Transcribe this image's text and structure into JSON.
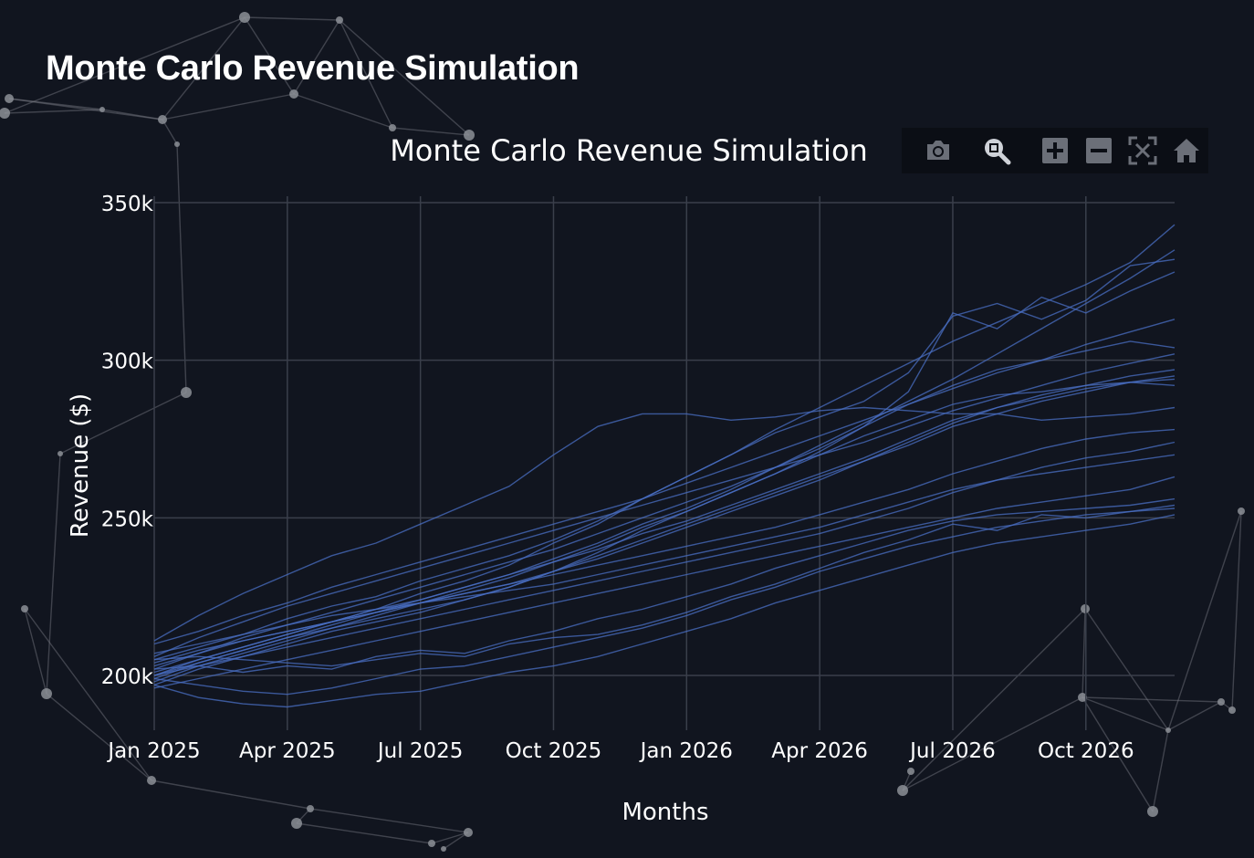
{
  "page": {
    "title": "Monte Carlo Revenue Simulation"
  },
  "modebar": {
    "buttons": [
      {
        "name": "camera-icon",
        "tooltip": "Download plot as a png"
      },
      {
        "name": "zoom-icon",
        "tooltip": "Zoom"
      },
      {
        "name": "zoom-in-icon",
        "tooltip": "Zoom in"
      },
      {
        "name": "zoom-out-icon",
        "tooltip": "Zoom out"
      },
      {
        "name": "autoscale-icon",
        "tooltip": "Autoscale"
      },
      {
        "name": "home-icon",
        "tooltip": "Reset axes"
      }
    ]
  },
  "colors": {
    "background": "#11151f",
    "line": "#4a6fc4",
    "grid": "#3a3f4b",
    "text": "#ffffff"
  },
  "chart_data": {
    "type": "line",
    "title": "Monte Carlo Revenue Simulation",
    "xlabel": "Months",
    "ylabel": "Revenue ($)",
    "x_start": "2025-01",
    "x_ticks": [
      "Jan 2025",
      "Apr 2025",
      "Jul 2025",
      "Oct 2025",
      "Jan 2026",
      "Apr 2026",
      "Jul 2026",
      "Oct 2026"
    ],
    "y_ticks": [
      "200k",
      "250k",
      "300k",
      "350k"
    ],
    "y_tick_values": [
      200000,
      250000,
      300000,
      350000
    ],
    "ylim": [
      190000,
      355000
    ],
    "grid": true,
    "legend": "none",
    "x": [
      "2025-01",
      "2025-02",
      "2025-03",
      "2025-04",
      "2025-05",
      "2025-06",
      "2025-07",
      "2025-08",
      "2025-09",
      "2025-10",
      "2025-11",
      "2025-12",
      "2026-01",
      "2026-02",
      "2026-03",
      "2026-04",
      "2026-05",
      "2026-06",
      "2026-07",
      "2026-08",
      "2026-09",
      "2026-10",
      "2026-11",
      "2026-12"
    ],
    "series": [
      {
        "values": [
          200000,
          205000,
          209000,
          213000,
          217000,
          221000,
          226000,
          230000,
          235000,
          242000,
          248000,
          256000,
          263000,
          270000,
          278000,
          285000,
          292000,
          299000,
          306000,
          312000,
          318000,
          324000,
          331000,
          343000
        ]
      },
      {
        "values": [
          200000,
          204000,
          208000,
          212000,
          216000,
          220000,
          224000,
          228000,
          232000,
          237000,
          242000,
          248000,
          253000,
          259000,
          266000,
          273000,
          280000,
          287000,
          294000,
          302000,
          310000,
          318000,
          326000,
          335000
        ]
      },
      {
        "values": [
          205000,
          209000,
          213000,
          218000,
          222000,
          225000,
          230000,
          234000,
          238000,
          243000,
          249000,
          256000,
          263000,
          270000,
          277000,
          282000,
          287000,
          296000,
          314000,
          318000,
          313000,
          319000,
          330000,
          332000
        ]
      },
      {
        "values": [
          198000,
          203000,
          207000,
          211000,
          215000,
          219000,
          223000,
          227000,
          231000,
          236000,
          241000,
          247000,
          252000,
          258000,
          264000,
          271000,
          279000,
          290000,
          315000,
          310000,
          320000,
          315000,
          322000,
          328000
        ]
      },
      {
        "values": [
          210000,
          214000,
          219000,
          223000,
          228000,
          232000,
          236000,
          240000,
          244000,
          248000,
          252000,
          256000,
          261000,
          266000,
          271000,
          276000,
          281000,
          286000,
          291000,
          296000,
          300000,
          305000,
          309000,
          313000
        ]
      },
      {
        "values": [
          202000,
          207000,
          212000,
          216000,
          220000,
          224000,
          228000,
          232000,
          236000,
          240000,
          245000,
          250000,
          255000,
          260000,
          266000,
          272000,
          279000,
          286000,
          292000,
          297000,
          300000,
          303000,
          306000,
          304000
        ]
      },
      {
        "values": [
          206000,
          212000,
          217000,
          222000,
          226000,
          230000,
          234000,
          238000,
          242000,
          246000,
          250000,
          254000,
          258000,
          262000,
          266000,
          270000,
          274000,
          279000,
          284000,
          288000,
          292000,
          296000,
          299000,
          302000
        ]
      },
      {
        "values": [
          199000,
          204000,
          208000,
          212000,
          215000,
          218000,
          221000,
          224000,
          228000,
          233000,
          238000,
          243000,
          248000,
          253000,
          258000,
          263000,
          268000,
          274000,
          280000,
          285000,
          289000,
          292000,
          295000,
          297000
        ]
      },
      {
        "values": [
          204000,
          208000,
          211000,
          214000,
          217000,
          220000,
          223000,
          226000,
          229000,
          233000,
          237000,
          242000,
          247000,
          252000,
          257000,
          262000,
          268000,
          273000,
          279000,
          283000,
          287000,
          290000,
          293000,
          295000
        ]
      },
      {
        "values": [
          201000,
          205000,
          209000,
          213000,
          217000,
          221000,
          224000,
          228000,
          232000,
          236000,
          240000,
          245000,
          249000,
          254000,
          259000,
          264000,
          269000,
          275000,
          281000,
          285000,
          288000,
          291000,
          293000,
          294000
        ]
      },
      {
        "values": [
          197000,
          202000,
          206000,
          210000,
          214000,
          217000,
          220000,
          224000,
          228000,
          233000,
          239000,
          246000,
          252000,
          258000,
          264000,
          270000,
          276000,
          281000,
          286000,
          289000,
          290000,
          292000,
          293000,
          292000
        ]
      },
      {
        "values": [
          211000,
          219000,
          226000,
          232000,
          238000,
          242000,
          248000,
          254000,
          260000,
          270000,
          279000,
          283000,
          283000,
          281000,
          282000,
          284000,
          285000,
          284000,
          283000,
          283000,
          281000,
          282000,
          283000,
          285000
        ]
      },
      {
        "values": [
          203000,
          207000,
          211000,
          214000,
          217000,
          220000,
          223000,
          226000,
          229000,
          232000,
          235000,
          238000,
          241000,
          244000,
          247000,
          251000,
          255000,
          259000,
          264000,
          268000,
          272000,
          275000,
          277000,
          278000
        ]
      },
      {
        "values": [
          200000,
          203000,
          206000,
          209000,
          212000,
          215000,
          218000,
          221000,
          224000,
          227000,
          230000,
          233000,
          236000,
          239000,
          242000,
          245000,
          249000,
          253000,
          258000,
          262000,
          266000,
          269000,
          271000,
          274000
        ]
      },
      {
        "values": [
          207000,
          210000,
          213000,
          216000,
          219000,
          221000,
          223000,
          225000,
          227000,
          229000,
          232000,
          235000,
          238000,
          241000,
          244000,
          247000,
          251000,
          255000,
          259000,
          262000,
          264000,
          266000,
          268000,
          270000
        ]
      },
      {
        "values": [
          196000,
          199000,
          202000,
          205000,
          208000,
          211000,
          214000,
          217000,
          220000,
          223000,
          226000,
          229000,
          232000,
          235000,
          238000,
          241000,
          244000,
          247000,
          250000,
          253000,
          255000,
          257000,
          259000,
          263000
        ]
      },
      {
        "values": [
          202000,
          203000,
          201000,
          203000,
          202000,
          206000,
          208000,
          207000,
          211000,
          214000,
          218000,
          221000,
          225000,
          229000,
          234000,
          238000,
          242000,
          246000,
          249000,
          251000,
          252000,
          253000,
          254000,
          256000
        ]
      },
      {
        "values": [
          199000,
          197000,
          195000,
          194000,
          196000,
          199000,
          202000,
          203000,
          206000,
          209000,
          212000,
          215000,
          219000,
          224000,
          228000,
          233000,
          237000,
          241000,
          244000,
          247000,
          249000,
          251000,
          252000,
          254000
        ]
      },
      {
        "values": [
          205000,
          206000,
          205000,
          204000,
          203000,
          205000,
          207000,
          206000,
          210000,
          212000,
          213000,
          216000,
          220000,
          225000,
          229000,
          234000,
          239000,
          243000,
          248000,
          246000,
          251000,
          250000,
          252000,
          253000
        ]
      },
      {
        "values": [
          197000,
          193000,
          191000,
          190000,
          192000,
          194000,
          195000,
          198000,
          201000,
          203000,
          206000,
          210000,
          214000,
          218000,
          223000,
          227000,
          231000,
          235000,
          239000,
          242000,
          244000,
          246000,
          248000,
          251000
        ]
      }
    ]
  }
}
